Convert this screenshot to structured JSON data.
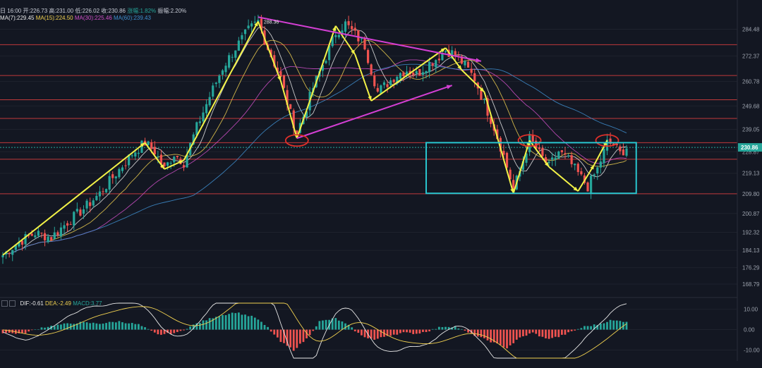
{
  "header": {
    "ohlc_prefix": "日 16:00",
    "open_label": "开:226.73",
    "high_label": "高:231.00",
    "low_label": "低:226.02",
    "close_label": "收:230.86",
    "change_label": "涨幅:1.82%",
    "amp_label": "振幅:2.20%",
    "ma7": "MA(7):229.45",
    "ma15": "MA(15):224.50",
    "ma30": "MA(30):225.46",
    "ma60": "MA(60):239.43"
  },
  "macd_legend": {
    "dif": "DIF:-0.61",
    "dea": "DEA:-2.49",
    "macd": "MACD:3.77"
  },
  "colors": {
    "up": "#26a69a",
    "down": "#ef5350",
    "ma7": "#e8e8e8",
    "ma15": "#f0d050",
    "ma30": "#d050c8",
    "ma60": "#3f8fd0",
    "resistance": "#c0393b",
    "trend_yellow": "#f2f247",
    "trend_magenta": "#d43fd4",
    "box": "#29c6cf",
    "circle": "#e0302a",
    "price_badge": "#26a69a"
  },
  "chart_data": {
    "type": "candlestick",
    "price_axis": {
      "ticks": [
        284.48,
        272.37,
        260.78,
        249.68,
        239.05,
        228.87,
        219.13,
        209.8,
        200.87,
        192.32,
        184.13,
        176.29,
        168.79
      ],
      "current_price": 230.86,
      "ylim": [
        164,
        292
      ]
    },
    "macd_axis": {
      "ticks": [
        10.0,
        0.0,
        -10.0
      ],
      "ylim": [
        -14,
        13
      ]
    },
    "high_marker": "288.36",
    "price_path": [
      [
        0,
        182
      ],
      [
        5,
        188
      ],
      [
        10,
        192
      ],
      [
        15,
        190
      ],
      [
        20,
        197
      ],
      [
        25,
        203
      ],
      [
        30,
        210
      ],
      [
        35,
        219
      ],
      [
        40,
        228
      ],
      [
        44,
        233
      ],
      [
        47,
        229
      ],
      [
        50,
        221
      ],
      [
        53,
        228
      ],
      [
        56,
        224
      ],
      [
        60,
        240
      ],
      [
        64,
        254
      ],
      [
        68,
        267
      ],
      [
        72,
        276
      ],
      [
        76,
        284
      ],
      [
        79,
        288
      ],
      [
        82,
        276
      ],
      [
        86,
        262
      ],
      [
        89,
        246
      ],
      [
        91,
        238
      ],
      [
        93,
        245
      ],
      [
        96,
        258
      ],
      [
        100,
        272
      ],
      [
        103,
        283
      ],
      [
        106,
        287
      ],
      [
        109,
        282
      ],
      [
        112,
        277
      ],
      [
        114,
        266
      ],
      [
        116,
        256
      ],
      [
        119,
        260
      ],
      [
        122,
        264
      ],
      [
        125,
        266
      ],
      [
        128,
        264
      ],
      [
        131,
        268
      ],
      [
        134,
        271
      ],
      [
        137,
        275
      ],
      [
        140,
        273
      ],
      [
        143,
        268
      ],
      [
        146,
        262
      ],
      [
        149,
        251
      ],
      [
        152,
        240
      ],
      [
        155,
        227
      ],
      [
        158,
        212
      ],
      [
        160,
        220
      ],
      [
        163,
        235
      ],
      [
        166,
        228
      ],
      [
        169,
        222
      ],
      [
        172,
        229
      ],
      [
        175,
        225
      ],
      [
        178,
        219
      ],
      [
        181,
        213
      ],
      [
        184,
        221
      ],
      [
        187,
        233
      ],
      [
        189,
        232
      ],
      [
        191,
        228
      ],
      [
        193,
        231
      ]
    ],
    "macd_hist": [
      [
        0,
        -1.5
      ],
      [
        6,
        -2
      ],
      [
        12,
        1
      ],
      [
        18,
        2.5
      ],
      [
        24,
        3.5
      ],
      [
        30,
        3
      ],
      [
        36,
        4
      ],
      [
        42,
        2.5
      ],
      [
        48,
        -2.5
      ],
      [
        54,
        -1.5
      ],
      [
        60,
        3
      ],
      [
        66,
        6.5
      ],
      [
        72,
        8.5
      ],
      [
        78,
        6
      ],
      [
        82,
        1
      ],
      [
        86,
        -6
      ],
      [
        90,
        -10
      ],
      [
        94,
        -4.5
      ],
      [
        98,
        4
      ],
      [
        103,
        5.5
      ],
      [
        107,
        2
      ],
      [
        111,
        -3
      ],
      [
        115,
        -5
      ],
      [
        119,
        -3
      ],
      [
        124,
        -1.5
      ],
      [
        128,
        -2
      ],
      [
        132,
        -0.5
      ],
      [
        136,
        1.5
      ],
      [
        140,
        1.5
      ],
      [
        144,
        -1.5
      ],
      [
        148,
        -4
      ],
      [
        152,
        -6.5
      ],
      [
        156,
        -9
      ],
      [
        160,
        -4
      ],
      [
        164,
        -1.5
      ],
      [
        168,
        -4.5
      ],
      [
        172,
        -3.5
      ],
      [
        176,
        -1
      ],
      [
        180,
        1.5
      ],
      [
        184,
        2.5
      ],
      [
        188,
        4.5
      ],
      [
        193,
        4
      ]
    ],
    "annotations": {
      "horizontal_levels": [
        277.5,
        263.5,
        252.5,
        244.0,
        233.0,
        225.5,
        209.8
      ],
      "yellow_zigzag": [
        [
          0,
          182
        ],
        [
          44,
          233
        ],
        [
          50,
          221
        ],
        [
          56,
          225
        ],
        [
          79,
          288
        ],
        [
          86,
          261
        ],
        [
          91,
          235
        ],
        [
          103,
          286
        ],
        [
          109,
          273
        ],
        [
          114,
          252
        ],
        [
          137,
          276
        ],
        [
          142,
          266
        ],
        [
          149,
          256
        ],
        [
          158,
          210
        ],
        [
          163,
          234
        ],
        [
          169,
          222
        ],
        [
          178,
          211
        ],
        [
          183,
          223
        ],
        [
          187,
          234
        ]
      ],
      "magenta_top_line": [
        [
          79,
          290
        ],
        [
          148,
          270
        ]
      ],
      "magenta_bottom_line": [
        [
          91,
          235
        ],
        [
          139,
          259
        ]
      ],
      "red_circles": [
        [
          91,
          234
        ],
        [
          163,
          234
        ],
        [
          187,
          234
        ]
      ],
      "cyan_box": [
        [
          131,
          233
        ],
        [
          196,
          210
        ]
      ]
    }
  }
}
